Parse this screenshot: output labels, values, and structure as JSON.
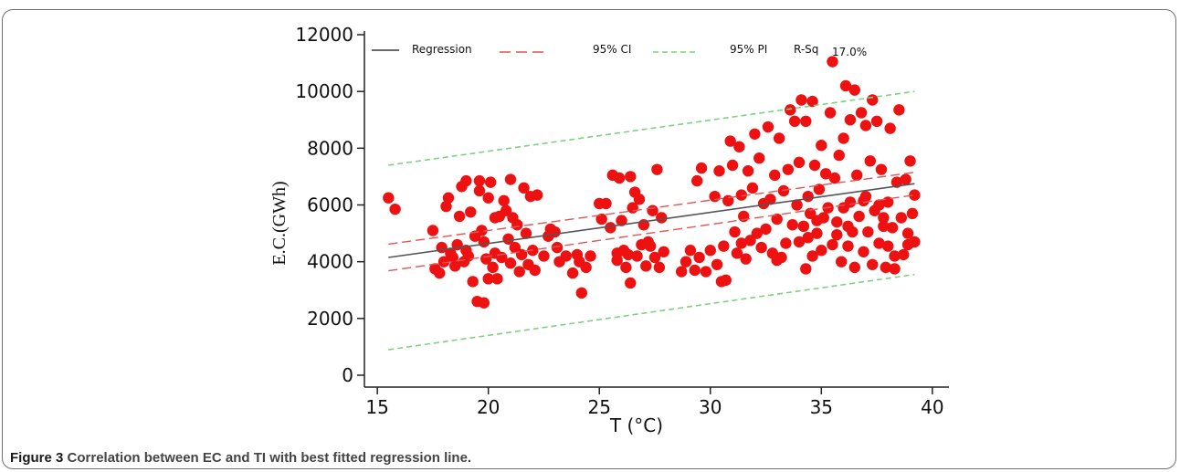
{
  "caption": {
    "label": "Figure 3",
    "text": "Correlation between EC and TI with best fitted regression line."
  },
  "colors": {
    "points": "#ee1111",
    "regression": "#555555",
    "ci": "#e05555",
    "pi": "#7fd07f"
  },
  "chart_data": {
    "type": "scatter",
    "xlabel": "T (°C)",
    "ylabel": "E.C.(GWh)",
    "xlim": [
      14.5,
      40.5
    ],
    "ylim": [
      0,
      12000
    ],
    "xticks": [
      15,
      20,
      25,
      30,
      35,
      40
    ],
    "yticks": [
      0,
      2000,
      4000,
      6000,
      8000,
      10000,
      12000
    ],
    "legend": {
      "position": "top",
      "entries": [
        "Regression",
        "95% CI",
        "95% PI"
      ],
      "rsq_label": "R-Sq",
      "rsq_value": "17.0%"
    },
    "regression": {
      "x": [
        15.5,
        39.2
      ],
      "y": [
        4150,
        6750
      ]
    },
    "ci_upper": {
      "x": [
        15.5,
        39.2
      ],
      "y": [
        4620,
        7150
      ]
    },
    "ci_lower": {
      "x": [
        15.5,
        39.2
      ],
      "y": [
        3680,
        6350
      ]
    },
    "pi_upper": {
      "x": [
        15.5,
        39.2
      ],
      "y": [
        7400,
        10000
      ]
    },
    "pi_lower": {
      "x": [
        15.5,
        39.2
      ],
      "y": [
        900,
        3550
      ]
    },
    "points": [
      [
        15.5,
        6250
      ],
      [
        15.8,
        5850
      ],
      [
        17.5,
        5100
      ],
      [
        17.6,
        3750
      ],
      [
        17.8,
        3600
      ],
      [
        17.9,
        4500
      ],
      [
        18.0,
        4000
      ],
      [
        18.1,
        5950
      ],
      [
        18.2,
        6250
      ],
      [
        18.3,
        4300
      ],
      [
        18.5,
        3850
      ],
      [
        18.6,
        4600
      ],
      [
        18.7,
        5600
      ],
      [
        18.8,
        6650
      ],
      [
        18.9,
        4000
      ],
      [
        19.0,
        6850
      ],
      [
        19.1,
        4200
      ],
      [
        19.2,
        5750
      ],
      [
        19.3,
        3300
      ],
      [
        19.4,
        4900
      ],
      [
        19.5,
        2600
      ],
      [
        19.6,
        6850
      ],
      [
        19.6,
        6500
      ],
      [
        19.7,
        5100
      ],
      [
        19.8,
        2550
      ],
      [
        19.8,
        4700
      ],
      [
        19.9,
        4100
      ],
      [
        20.0,
        3400
      ],
      [
        20.0,
        6250
      ],
      [
        20.1,
        6800
      ],
      [
        20.2,
        3800
      ],
      [
        20.3,
        4300
      ],
      [
        20.4,
        3400
      ],
      [
        20.5,
        5600
      ],
      [
        20.6,
        4150
      ],
      [
        20.7,
        6150
      ],
      [
        20.8,
        5800
      ],
      [
        20.9,
        4800
      ],
      [
        21.0,
        3950
      ],
      [
        21.0,
        6900
      ],
      [
        21.1,
        5550
      ],
      [
        21.2,
        4500
      ],
      [
        21.3,
        5300
      ],
      [
        21.4,
        3650
      ],
      [
        21.5,
        4250
      ],
      [
        21.6,
        6600
      ],
      [
        21.7,
        5000
      ],
      [
        21.8,
        3900
      ],
      [
        21.9,
        6300
      ],
      [
        22.0,
        4400
      ],
      [
        22.1,
        3700
      ],
      [
        22.2,
        6350
      ],
      [
        22.5,
        4200
      ],
      [
        22.7,
        4900
      ],
      [
        22.8,
        5150
      ],
      [
        23.0,
        5050
      ],
      [
        23.1,
        4500
      ],
      [
        23.5,
        4200
      ],
      [
        23.8,
        3600
      ],
      [
        24.0,
        4250
      ],
      [
        24.1,
        4000
      ],
      [
        24.2,
        2900
      ],
      [
        24.4,
        3800
      ],
      [
        24.6,
        4200
      ],
      [
        25.0,
        6050
      ],
      [
        25.1,
        5500
      ],
      [
        25.3,
        6050
      ],
      [
        25.5,
        5200
      ],
      [
        25.6,
        7050
      ],
      [
        25.8,
        4050
      ],
      [
        25.9,
        6950
      ],
      [
        26.0,
        5450
      ],
      [
        26.1,
        4400
      ],
      [
        26.2,
        3800
      ],
      [
        26.3,
        4250
      ],
      [
        26.4,
        7000
      ],
      [
        26.5,
        5900
      ],
      [
        26.6,
        6450
      ],
      [
        26.7,
        4200
      ],
      [
        26.8,
        6200
      ],
      [
        26.9,
        4600
      ],
      [
        27.0,
        5300
      ],
      [
        27.1,
        3850
      ],
      [
        27.2,
        4700
      ],
      [
        27.4,
        5800
      ],
      [
        27.5,
        4150
      ],
      [
        27.6,
        7250
      ],
      [
        27.7,
        3800
      ],
      [
        27.8,
        5550
      ],
      [
        27.9,
        4350
      ],
      [
        28.7,
        3650
      ],
      [
        28.9,
        4000
      ],
      [
        29.1,
        4400
      ],
      [
        29.3,
        3700
      ],
      [
        29.4,
        6850
      ],
      [
        29.5,
        4150
      ],
      [
        29.6,
        7300
      ],
      [
        29.8,
        3650
      ],
      [
        30.0,
        4400
      ],
      [
        30.2,
        6300
      ],
      [
        30.3,
        3900
      ],
      [
        30.4,
        7200
      ],
      [
        30.5,
        3300
      ],
      [
        30.6,
        4550
      ],
      [
        30.7,
        3350
      ],
      [
        30.8,
        6150
      ],
      [
        30.9,
        8250
      ],
      [
        31.0,
        7400
      ],
      [
        31.1,
        5050
      ],
      [
        31.2,
        4300
      ],
      [
        31.3,
        8050
      ],
      [
        31.4,
        6350
      ],
      [
        31.5,
        5600
      ],
      [
        31.6,
        4100
      ],
      [
        31.7,
        7200
      ],
      [
        31.8,
        4750
      ],
      [
        31.9,
        6600
      ],
      [
        32.0,
        8500
      ],
      [
        32.1,
        5000
      ],
      [
        32.2,
        7650
      ],
      [
        32.3,
        4500
      ],
      [
        32.4,
        6050
      ],
      [
        32.5,
        5150
      ],
      [
        32.6,
        8750
      ],
      [
        32.7,
        6200
      ],
      [
        32.8,
        4300
      ],
      [
        32.9,
        7050
      ],
      [
        33.0,
        5500
      ],
      [
        33.1,
        8350
      ],
      [
        33.2,
        4150
      ],
      [
        33.3,
        6500
      ],
      [
        33.4,
        4650
      ],
      [
        33.5,
        7250
      ],
      [
        33.6,
        9350
      ],
      [
        33.7,
        5300
      ],
      [
        33.8,
        8950
      ],
      [
        33.9,
        6000
      ],
      [
        34.0,
        7500
      ],
      [
        34.0,
        4700
      ],
      [
        34.1,
        9700
      ],
      [
        34.2,
        5250
      ],
      [
        34.3,
        3750
      ],
      [
        34.3,
        8950
      ],
      [
        34.4,
        6300
      ],
      [
        34.5,
        5700
      ],
      [
        34.6,
        9650
      ],
      [
        34.6,
        4200
      ],
      [
        34.7,
        7400
      ],
      [
        34.8,
        5000
      ],
      [
        34.9,
        6550
      ],
      [
        35.0,
        8100
      ],
      [
        35.0,
        4400
      ],
      [
        35.1,
        5550
      ],
      [
        35.2,
        7100
      ],
      [
        35.3,
        5900
      ],
      [
        35.4,
        9250
      ],
      [
        35.5,
        11050
      ],
      [
        35.5,
        4600
      ],
      [
        35.6,
        6950
      ],
      [
        35.7,
        5400
      ],
      [
        35.8,
        7750
      ],
      [
        35.9,
        4000
      ],
      [
        36.0,
        8350
      ],
      [
        36.0,
        5900
      ],
      [
        36.1,
        10200
      ],
      [
        36.2,
        4550
      ],
      [
        36.3,
        9000
      ],
      [
        36.3,
        6100
      ],
      [
        36.4,
        5050
      ],
      [
        36.5,
        10050
      ],
      [
        36.5,
        3800
      ],
      [
        36.6,
        7050
      ],
      [
        36.7,
        5600
      ],
      [
        36.8,
        9250
      ],
      [
        36.9,
        4350
      ],
      [
        37.0,
        8800
      ],
      [
        37.0,
        6300
      ],
      [
        37.1,
        5050
      ],
      [
        37.2,
        7550
      ],
      [
        37.3,
        9700
      ],
      [
        37.3,
        3900
      ],
      [
        37.4,
        5800
      ],
      [
        37.5,
        8950
      ],
      [
        37.6,
        4650
      ],
      [
        37.7,
        7250
      ],
      [
        37.8,
        5550
      ],
      [
        37.9,
        3800
      ],
      [
        38.0,
        6100
      ],
      [
        38.0,
        4550
      ],
      [
        38.1,
        8700
      ],
      [
        38.2,
        5200
      ],
      [
        38.3,
        4200
      ],
      [
        38.4,
        6800
      ],
      [
        38.5,
        9350
      ],
      [
        38.6,
        5550
      ],
      [
        38.7,
        4250
      ],
      [
        38.8,
        6900
      ],
      [
        38.9,
        4600
      ],
      [
        39.0,
        7550
      ],
      [
        39.1,
        5700
      ],
      [
        39.2,
        6350
      ],
      [
        39.2,
        4700
      ],
      [
        38.3,
        3750
      ],
      [
        37.8,
        5250
      ],
      [
        36.9,
        6150
      ],
      [
        35.7,
        4950
      ],
      [
        34.4,
        4850
      ],
      [
        33.0,
        4050
      ],
      [
        26.4,
        3250
      ],
      [
        23.2,
        4000
      ],
      [
        20.3,
        5550
      ],
      [
        19.0,
        4400
      ],
      [
        18.4,
        4150
      ],
      [
        25.8,
        4300
      ],
      [
        27.3,
        4550
      ],
      [
        31.4,
        4650
      ],
      [
        34.8,
        5450
      ],
      [
        36.2,
        5250
      ],
      [
        37.6,
        6000
      ],
      [
        38.9,
        5000
      ]
    ]
  }
}
